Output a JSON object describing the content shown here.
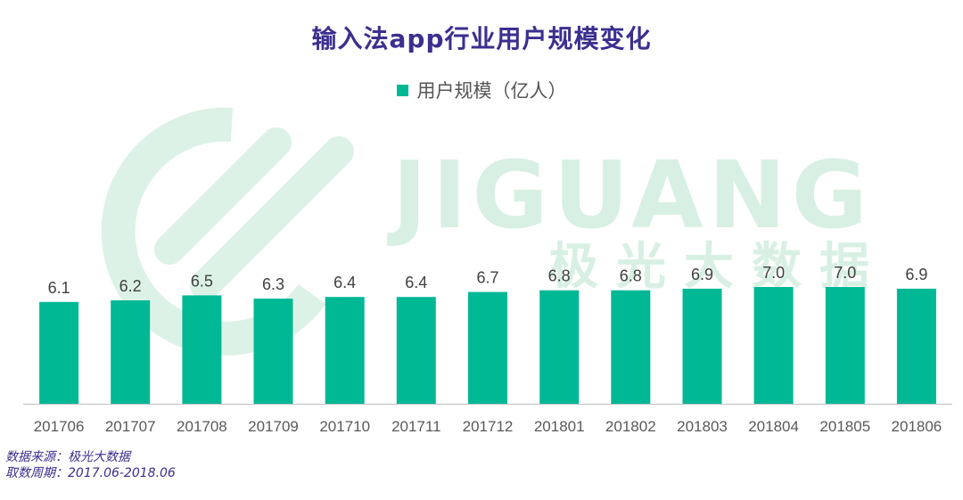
{
  "title": "输入法app行业用户规模变化",
  "watermark": {
    "latin": "JIGUANG",
    "chinese": "极光大数据",
    "icon": "jiguang-logo"
  },
  "colors": {
    "bar": "#00b894",
    "title": "#3b2f8f",
    "watermark": "#cfeedd",
    "axis": "#bfbfbf",
    "label": "#404040"
  },
  "footer": {
    "source": "数据来源：极光大数据",
    "period": "取数周期：2017.06-2018.06"
  },
  "chart_data": {
    "type": "bar",
    "title": "输入法app行业用户规模变化",
    "legend": "用户规模（亿人）",
    "legend_position": "top",
    "categories": [
      "201706",
      "201707",
      "201708",
      "201709",
      "201710",
      "201711",
      "201712",
      "201801",
      "201802",
      "201803",
      "201804",
      "201805",
      "201806"
    ],
    "series": [
      {
        "name": "用户规模（亿人）",
        "values": [
          6.1,
          6.2,
          6.5,
          6.3,
          6.4,
          6.4,
          6.7,
          6.8,
          6.8,
          6.9,
          7.0,
          7.0,
          6.9
        ],
        "labels": [
          "6.1",
          "6.2",
          "6.5",
          "6.3",
          "6.4",
          "6.4",
          "6.7",
          "6.8",
          "6.8",
          "6.9",
          "7.0",
          "7.0",
          "6.9"
        ]
      }
    ],
    "ylim": [
      0,
      7.5
    ],
    "grid": false
  }
}
